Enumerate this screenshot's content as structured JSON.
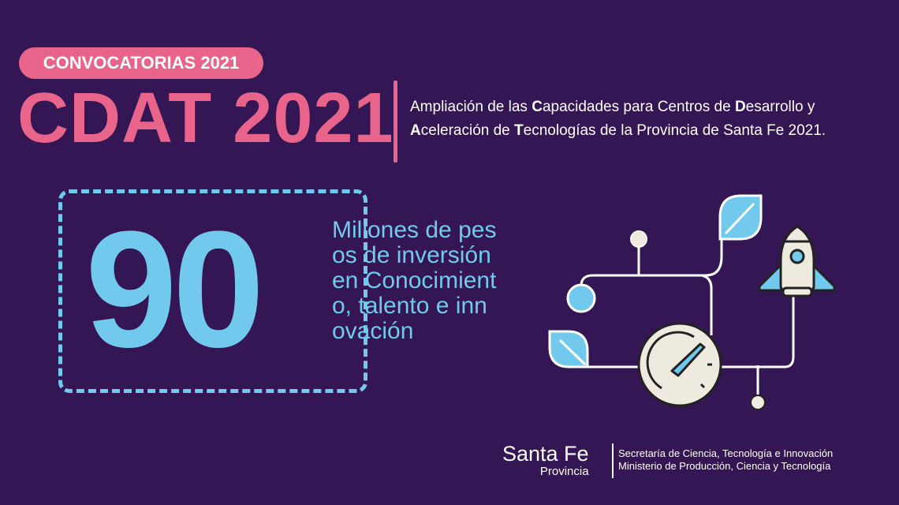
{
  "badge": "CONVOCATORIAS 2021",
  "title": "CDAT 2021",
  "description": {
    "line1": [
      {
        "t": "Ampliación de las "
      },
      {
        "t": "C",
        "b": true
      },
      {
        "t": "apacidades para Centros de "
      },
      {
        "t": "D",
        "b": true
      },
      {
        "t": "esarrollo y"
      }
    ],
    "line2": [
      {
        "t": "A",
        "b": true
      },
      {
        "t": "celeración de "
      },
      {
        "t": "T",
        "b": true
      },
      {
        "t": "ecnologías de la Provincia de Santa Fe 2021."
      }
    ]
  },
  "highlight": {
    "number": "90",
    "text": "Millones de pesos de inversión en Conocimiento, talento e innovación"
  },
  "footer": {
    "logo_main": "Santa Fe",
    "logo_sub": "Provincia",
    "org1": "Secretaría de Ciencia, Tecnología e Innovación",
    "org2": "Ministerio de Producción, Ciencia y Tecnología"
  },
  "colors": {
    "background": "#351654",
    "pink": "#e8648a",
    "blue": "#72c9ee",
    "cream": "#eeeae0"
  },
  "illustration_icons": [
    "leaf-icon",
    "rocket-icon",
    "speedometer-icon",
    "node-circle-icon"
  ]
}
